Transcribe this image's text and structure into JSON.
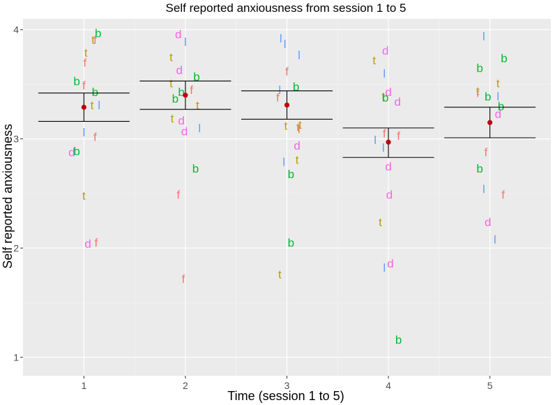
{
  "chart_data": {
    "type": "scatter",
    "title": "Self reported anxiousness from session 1 to 5",
    "xlabel": "Time (session 1 to 5)",
    "ylabel": "Self reported anxiousness",
    "xlim": [
      0.4,
      5.6
    ],
    "ylim": [
      0.83,
      4.1
    ],
    "x_ticks": [
      {
        "value": 1,
        "label": "1"
      },
      {
        "value": 2,
        "label": "2"
      },
      {
        "value": 3,
        "label": "3"
      },
      {
        "value": 4,
        "label": "4"
      },
      {
        "value": 5,
        "label": "5"
      }
    ],
    "y_ticks": [
      {
        "value": 1,
        "label": "1"
      },
      {
        "value": 2,
        "label": "2"
      },
      {
        "value": 3,
        "label": "3"
      },
      {
        "value": 4,
        "label": "4"
      }
    ],
    "groups": [
      {
        "label": "b",
        "color": "#00BA38"
      },
      {
        "label": "d",
        "color": "#F564E3"
      },
      {
        "label": "f",
        "color": "#F8766D"
      },
      {
        "label": "l",
        "color": "#619CFF"
      },
      {
        "label": "t",
        "color": "#B79F00"
      }
    ],
    "summary": [
      {
        "session": 1,
        "mean": 3.29,
        "lower": 3.16,
        "upper": 3.42
      },
      {
        "session": 2,
        "mean": 3.4,
        "lower": 3.27,
        "upper": 3.53
      },
      {
        "session": 3,
        "mean": 3.31,
        "lower": 3.18,
        "upper": 3.44
      },
      {
        "session": 4,
        "mean": 2.97,
        "lower": 2.83,
        "upper": 3.1
      },
      {
        "session": 5,
        "mean": 3.15,
        "lower": 3.01,
        "upper": 3.29
      }
    ],
    "points": [
      {
        "x": 1.14,
        "y": 3.97,
        "label": "b"
      },
      {
        "x": 1.09,
        "y": 3.91,
        "label": "t"
      },
      {
        "x": 1.11,
        "y": 3.91,
        "label": "f"
      },
      {
        "x": 1.02,
        "y": 3.79,
        "label": "t"
      },
      {
        "x": 1.01,
        "y": 3.7,
        "label": "f"
      },
      {
        "x": 0.93,
        "y": 3.53,
        "label": "b"
      },
      {
        "x": 1.0,
        "y": 3.49,
        "label": "f"
      },
      {
        "x": 1.11,
        "y": 3.43,
        "label": "b"
      },
      {
        "x": 1.08,
        "y": 3.31,
        "label": "t"
      },
      {
        "x": 1.15,
        "y": 3.31,
        "label": "l"
      },
      {
        "x": 1.0,
        "y": 3.06,
        "label": "l"
      },
      {
        "x": 1.11,
        "y": 3.02,
        "label": "f"
      },
      {
        "x": 0.88,
        "y": 2.88,
        "label": "d"
      },
      {
        "x": 0.93,
        "y": 2.89,
        "label": "b"
      },
      {
        "x": 1.0,
        "y": 2.48,
        "label": "t"
      },
      {
        "x": 1.04,
        "y": 2.04,
        "label": "d"
      },
      {
        "x": 1.12,
        "y": 2.05,
        "label": "f"
      },
      {
        "x": 1.93,
        "y": 3.96,
        "label": "d"
      },
      {
        "x": 2.0,
        "y": 3.89,
        "label": "l"
      },
      {
        "x": 1.86,
        "y": 3.75,
        "label": "t"
      },
      {
        "x": 1.94,
        "y": 3.63,
        "label": "d"
      },
      {
        "x": 2.11,
        "y": 3.57,
        "label": "b"
      },
      {
        "x": 1.86,
        "y": 3.51,
        "label": "t"
      },
      {
        "x": 2.06,
        "y": 3.45,
        "label": "f"
      },
      {
        "x": 1.96,
        "y": 3.43,
        "label": "b"
      },
      {
        "x": 1.9,
        "y": 3.37,
        "label": "b"
      },
      {
        "x": 2.12,
        "y": 3.31,
        "label": "t"
      },
      {
        "x": 1.87,
        "y": 3.19,
        "label": "t"
      },
      {
        "x": 1.96,
        "y": 3.17,
        "label": "d"
      },
      {
        "x": 2.14,
        "y": 3.1,
        "label": "l"
      },
      {
        "x": 1.99,
        "y": 3.07,
        "label": "d"
      },
      {
        "x": 2.1,
        "y": 2.73,
        "label": "b"
      },
      {
        "x": 1.93,
        "y": 2.49,
        "label": "f"
      },
      {
        "x": 1.98,
        "y": 1.72,
        "label": "f"
      },
      {
        "x": 2.94,
        "y": 3.92,
        "label": "l"
      },
      {
        "x": 2.98,
        "y": 3.87,
        "label": "l"
      },
      {
        "x": 3.12,
        "y": 3.77,
        "label": "l"
      },
      {
        "x": 3.0,
        "y": 3.62,
        "label": "f"
      },
      {
        "x": 3.09,
        "y": 3.48,
        "label": "b"
      },
      {
        "x": 2.93,
        "y": 3.45,
        "label": "l"
      },
      {
        "x": 2.91,
        "y": 3.38,
        "label": "f"
      },
      {
        "x": 2.99,
        "y": 3.12,
        "label": "t"
      },
      {
        "x": 3.11,
        "y": 3.11,
        "label": "t"
      },
      {
        "x": 3.13,
        "y": 3.13,
        "label": "t"
      },
      {
        "x": 3.12,
        "y": 3.09,
        "label": "f"
      },
      {
        "x": 3.1,
        "y": 2.94,
        "label": "d"
      },
      {
        "x": 3.1,
        "y": 2.81,
        "label": "t"
      },
      {
        "x": 2.97,
        "y": 2.79,
        "label": "l"
      },
      {
        "x": 3.04,
        "y": 2.68,
        "label": "b"
      },
      {
        "x": 3.04,
        "y": 2.05,
        "label": "b"
      },
      {
        "x": 2.93,
        "y": 1.76,
        "label": "t"
      },
      {
        "x": 3.97,
        "y": 3.81,
        "label": "d"
      },
      {
        "x": 3.86,
        "y": 3.72,
        "label": "t"
      },
      {
        "x": 3.96,
        "y": 3.6,
        "label": "l"
      },
      {
        "x": 4.0,
        "y": 3.43,
        "label": "d"
      },
      {
        "x": 3.95,
        "y": 3.39,
        "label": "t"
      },
      {
        "x": 3.97,
        "y": 3.38,
        "label": "b"
      },
      {
        "x": 4.09,
        "y": 3.34,
        "label": "d"
      },
      {
        "x": 3.96,
        "y": 3.05,
        "label": "f"
      },
      {
        "x": 4.1,
        "y": 3.03,
        "label": "f"
      },
      {
        "x": 3.87,
        "y": 2.99,
        "label": "l"
      },
      {
        "x": 3.95,
        "y": 2.92,
        "label": "l"
      },
      {
        "x": 4.0,
        "y": 2.75,
        "label": "d"
      },
      {
        "x": 4.01,
        "y": 2.49,
        "label": "d"
      },
      {
        "x": 3.92,
        "y": 2.24,
        "label": "t"
      },
      {
        "x": 4.02,
        "y": 1.86,
        "label": "d"
      },
      {
        "x": 3.96,
        "y": 1.82,
        "label": "l"
      },
      {
        "x": 4.1,
        "y": 1.16,
        "label": "b"
      },
      {
        "x": 4.94,
        "y": 3.94,
        "label": "l"
      },
      {
        "x": 5.14,
        "y": 3.74,
        "label": "b"
      },
      {
        "x": 4.9,
        "y": 3.65,
        "label": "b"
      },
      {
        "x": 5.08,
        "y": 3.51,
        "label": "t"
      },
      {
        "x": 4.88,
        "y": 3.44,
        "label": "t"
      },
      {
        "x": 4.88,
        "y": 3.42,
        "label": "f"
      },
      {
        "x": 4.98,
        "y": 3.39,
        "label": "b"
      },
      {
        "x": 5.08,
        "y": 3.39,
        "label": "l"
      },
      {
        "x": 5.11,
        "y": 3.3,
        "label": "b"
      },
      {
        "x": 5.08,
        "y": 3.23,
        "label": "d"
      },
      {
        "x": 4.96,
        "y": 2.88,
        "label": "f"
      },
      {
        "x": 4.9,
        "y": 2.73,
        "label": "b"
      },
      {
        "x": 4.94,
        "y": 2.54,
        "label": "l"
      },
      {
        "x": 5.13,
        "y": 2.49,
        "label": "f"
      },
      {
        "x": 4.98,
        "y": 2.24,
        "label": "d"
      },
      {
        "x": 5.05,
        "y": 2.08,
        "label": "l"
      }
    ]
  }
}
